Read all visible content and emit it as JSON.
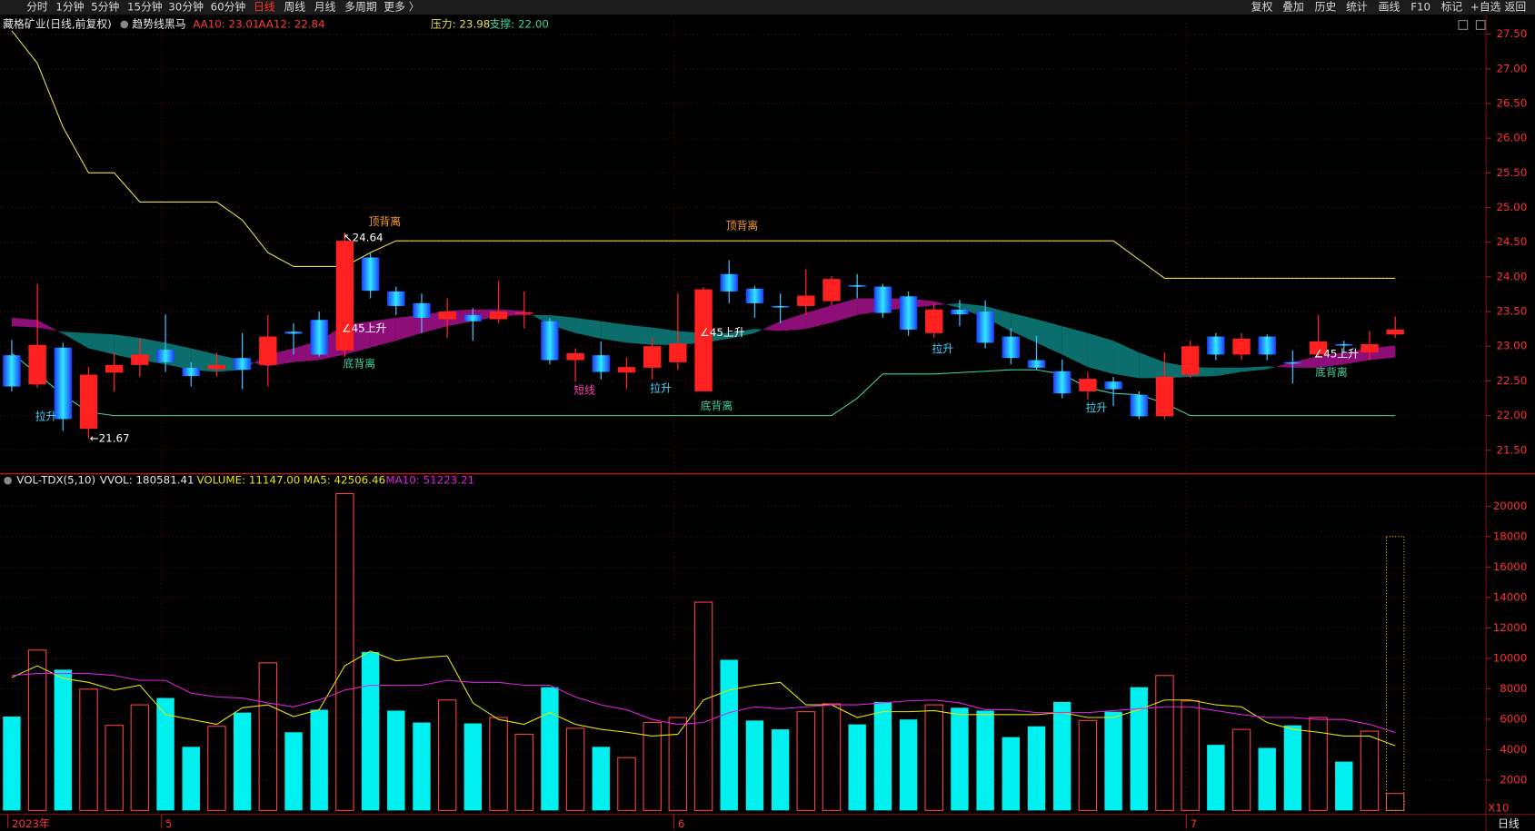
{
  "toolbar": {
    "left": [
      "分时",
      "1分钟",
      "5分钟",
      "15分钟",
      "30分钟",
      "60分钟",
      "日线",
      "周线",
      "月线",
      "多周期",
      "更多 〉"
    ],
    "active": 6,
    "right": [
      "复权",
      "叠加",
      "历史",
      "统计",
      "画线",
      "F10",
      "标记",
      "+自选",
      "返回"
    ]
  },
  "chart_data": [
    {
      "type": "candlestick",
      "title": "藏格矿业(日线,前复权)",
      "subtitle": "趋势线黑马",
      "ylim": [
        21.19,
        27.71
      ],
      "yticks": [
        {
          "value": 21.5,
          "label": "21.50"
        },
        {
          "value": 22,
          "label": "22.00"
        },
        {
          "value": 22.5,
          "label": "22.50"
        },
        {
          "value": 23,
          "label": "23.00"
        },
        {
          "value": 23.5,
          "label": "23.50"
        },
        {
          "value": 24,
          "label": "24.00"
        },
        {
          "value": 24.5,
          "label": "24.50"
        },
        {
          "value": 25,
          "label": "25.00"
        },
        {
          "value": 25.5,
          "label": "25.50"
        },
        {
          "value": 26,
          "label": "26.00"
        },
        {
          "value": 26.5,
          "label": "26.50"
        },
        {
          "value": 27,
          "label": "27.00"
        },
        {
          "value": 27.5,
          "label": "27.50"
        }
      ],
      "grid": true,
      "up_color": "#ff2020",
      "down_color": "#1e6cff",
      "open": [
        22.87,
        22.45,
        22.98,
        21.81,
        22.62,
        22.73,
        22.95,
        22.69,
        22.67,
        22.83,
        22.73,
        23.21,
        23.38,
        22.94,
        24.28,
        23.79,
        23.62,
        23.39,
        23.45,
        23.39,
        23.47,
        23.36,
        22.8,
        22.87,
        22.62,
        22.69,
        22.77,
        22.35,
        24.04,
        23.83,
        23.58,
        23.58,
        23.65,
        23.88,
        23.86,
        23.72,
        23.19,
        23.53,
        23.5,
        23.14,
        22.8,
        22.64,
        22.35,
        22.49,
        22.3,
        21.99,
        22.59,
        23.14,
        22.88,
        23.14,
        22.77,
        22.88,
        23.03,
        22.91,
        23.17
      ],
      "high": [
        23.09,
        23.9,
        23.05,
        22.7,
        22.91,
        23.12,
        23.46,
        22.77,
        22.91,
        23.19,
        23.45,
        23.33,
        23.5,
        24.64,
        24.35,
        23.86,
        23.76,
        23.69,
        23.55,
        23.94,
        23.79,
        23.41,
        22.97,
        23.07,
        22.84,
        23.12,
        23.76,
        23.85,
        24.24,
        23.87,
        23.76,
        24.11,
        24.01,
        24.04,
        23.9,
        23.79,
        23.62,
        23.67,
        23.66,
        23.26,
        23.15,
        22.81,
        22.63,
        22.56,
        22.35,
        22.91,
        23.08,
        23.19,
        23.19,
        23.17,
        22.94,
        23.45,
        23.08,
        23.22,
        23.43
      ],
      "low": [
        22.35,
        22.4,
        21.78,
        21.67,
        22.35,
        22.56,
        22.63,
        22.42,
        22.56,
        22.38,
        22.42,
        22.88,
        22.85,
        22.85,
        23.69,
        23.45,
        23.19,
        23.12,
        23.08,
        23.33,
        23.26,
        22.74,
        22.49,
        22.52,
        22.38,
        22.52,
        22.66,
        22.35,
        23.62,
        23.41,
        23.33,
        23.45,
        23.59,
        23.69,
        23.41,
        23.15,
        23.12,
        23.29,
        22.97,
        22.74,
        22.66,
        22.25,
        22.23,
        22.14,
        21.95,
        21.95,
        22.54,
        22.8,
        22.8,
        22.8,
        22.46,
        22.84,
        22.91,
        22.8,
        23.12
      ],
      "close": [
        22.42,
        23.02,
        21.95,
        22.59,
        22.73,
        22.88,
        22.77,
        22.57,
        22.73,
        22.66,
        23.14,
        23.18,
        22.88,
        24.52,
        23.8,
        23.58,
        23.41,
        23.5,
        23.36,
        23.5,
        23.49,
        22.8,
        22.9,
        22.63,
        22.7,
        23.0,
        23.04,
        23.82,
        23.79,
        23.62,
        23.56,
        23.73,
        23.97,
        23.87,
        23.48,
        23.24,
        23.53,
        23.46,
        23.05,
        22.83,
        22.69,
        22.32,
        22.53,
        22.38,
        21.99,
        22.56,
        23.0,
        22.88,
        23.11,
        22.88,
        22.76,
        23.07,
        23.02,
        23.03,
        23.24
      ],
      "lines": {
        "aa10": {
          "label": "AA10: 23.01",
          "color": "#ff3b3b",
          "values": [
            23.41,
            23.38,
            23.18,
            22.97,
            22.88,
            22.8,
            22.74,
            22.66,
            22.63,
            22.66,
            22.88,
            22.97,
            23.08,
            23.31,
            23.36,
            23.41,
            23.45,
            23.51,
            23.53,
            23.53,
            23.51,
            23.31,
            23.19,
            23.11,
            23.05,
            23.02,
            23.02,
            23.05,
            23.11,
            23.19,
            23.36,
            23.48,
            23.59,
            23.69,
            23.69,
            23.69,
            23.65,
            23.55,
            23.41,
            23.22,
            23.05,
            22.88,
            22.7,
            22.6,
            22.54,
            22.54,
            22.56,
            22.57,
            22.63,
            22.67,
            22.77,
            22.86,
            22.91,
            22.97,
            23.01
          ]
        },
        "aa12": {
          "label": "AA12: 22.84",
          "color": "#ff3b3b",
          "values": [
            23.29,
            23.27,
            23.21,
            23.19,
            23.17,
            23.12,
            23.05,
            22.97,
            22.88,
            22.8,
            22.71,
            22.77,
            22.8,
            22.88,
            22.98,
            23.08,
            23.19,
            23.29,
            23.36,
            23.43,
            23.45,
            23.45,
            23.41,
            23.36,
            23.31,
            23.27,
            23.22,
            23.19,
            23.19,
            23.25,
            23.22,
            23.25,
            23.34,
            23.45,
            23.51,
            23.55,
            23.59,
            23.62,
            23.58,
            23.48,
            23.39,
            23.29,
            23.19,
            23.08,
            22.91,
            22.77,
            22.7,
            22.69,
            22.69,
            22.71,
            22.69,
            22.69,
            22.74,
            22.8,
            22.84
          ]
        },
        "pressure": {
          "label": "压力: 23.98",
          "color": "#e6df4a",
          "values": [
            27.55,
            27.08,
            26.16,
            25.5,
            25.5,
            25.08,
            25.08,
            25.08,
            25.08,
            24.82,
            24.35,
            24.15,
            24.15,
            24.15,
            24.35,
            24.52,
            24.52,
            24.52,
            24.52,
            24.52,
            24.52,
            24.52,
            24.52,
            24.52,
            24.52,
            24.52,
            24.52,
            24.52,
            24.52,
            24.52,
            24.52,
            24.52,
            24.52,
            24.52,
            24.52,
            24.52,
            24.52,
            24.52,
            24.52,
            24.52,
            24.52,
            24.52,
            24.52,
            24.52,
            24.25,
            23.98,
            23.98,
            23.98,
            23.98,
            23.98,
            23.98,
            23.98,
            23.98,
            23.98,
            23.98
          ]
        },
        "support": {
          "label": "支撑: 22.00",
          "color": "#3fd2a0",
          "values": [
            22.9,
            22.6,
            22.3,
            22.05,
            22.0,
            22.0,
            22.0,
            22.0,
            22.0,
            22.0,
            22.0,
            22.0,
            22.0,
            22.0,
            22.0,
            22.0,
            22.0,
            22.0,
            22.0,
            22.0,
            22.0,
            22.0,
            22.0,
            22.0,
            22.0,
            22.0,
            22.0,
            22.0,
            22.0,
            22.0,
            22.0,
            22.0,
            22.0,
            22.25,
            22.6,
            22.6,
            22.6,
            22.62,
            22.64,
            22.66,
            22.66,
            22.6,
            22.4,
            22.32,
            22.3,
            22.18,
            22.0,
            22.0,
            22.0,
            22.0,
            22.0,
            22.0,
            22.0,
            22.0,
            22.0
          ]
        }
      },
      "band_colors": {
        "up": "#8e0e78",
        "down": "#0c6e6c"
      },
      "annotations": [
        {
          "text": "顶背离",
          "color": "#ff9a2e"
        },
        {
          "text": "顶背离",
          "color": "#ff9a2e"
        },
        {
          "text": "↖24.64",
          "color": "#ffffff"
        },
        {
          "text": "←21.67",
          "color": "#ffffff"
        },
        {
          "text": "∠45上升",
          "color": "#ffffff"
        },
        {
          "text": "∠45上升",
          "color": "#ffffff"
        },
        {
          "text": "∠45上升",
          "color": "#ffffff"
        },
        {
          "text": "底背离",
          "color": "#3fd2a0"
        },
        {
          "text": "底背离",
          "color": "#3fd2a0"
        },
        {
          "text": "底背离",
          "color": "#3fd2a0"
        },
        {
          "text": "拉升",
          "color": "#3fd6ff"
        },
        {
          "text": "拉升",
          "color": "#3fd6ff"
        },
        {
          "text": "拉升",
          "color": "#3fd6ff"
        },
        {
          "text": "拉升",
          "color": "#3fd6ff"
        },
        {
          "text": "短线",
          "color": "#ff3cb4"
        }
      ]
    },
    {
      "type": "bar",
      "title": "VOL-TDX(5,10)",
      "header": [
        {
          "text": "VVOL: 180581.41",
          "color": "#e8e8e8"
        },
        {
          "text": "VOLUME: 11147.00",
          "color": "#e6e600"
        },
        {
          "text": "MA5: 42506.46",
          "color": "#e6e600"
        },
        {
          "text": "MA10: 51223.21",
          "color": "#e020e0"
        }
      ],
      "ylim": [
        0,
        22000
      ],
      "yticks": [
        2000,
        4000,
        6000,
        8000,
        10000,
        12000,
        14000,
        16000,
        18000,
        20000
      ],
      "xticks": [
        {
          "value": 0,
          "label": "2023年"
        },
        {
          "value": 6,
          "label": "5"
        },
        {
          "value": 26,
          "label": "6"
        },
        {
          "value": 46,
          "label": "7"
        }
      ],
      "unit_label": "X10",
      "period_label": "日线",
      "up_color": "#ff4040",
      "down_color": "#00f0f0",
      "values": [
        6170,
        10540,
        9250,
        7970,
        5590,
        6940,
        7390,
        4180,
        5530,
        6430,
        9700,
        5140,
        6620,
        20820,
        10410,
        6560,
        5780,
        7260,
        5720,
        6110,
        5010,
        8100,
        5400,
        4180,
        3470,
        5780,
        6110,
        13690,
        9900,
        5910,
        5330,
        6490,
        7010,
        5660,
        7130,
        5980,
        6940,
        6750,
        6560,
        4820,
        5530,
        7130,
        5910,
        6490,
        8100,
        8870,
        7200,
        4310,
        5330,
        4110,
        5590,
        6110,
        3210,
        5210,
        1114.7
      ],
      "estimate": 18000,
      "estimate_color": "#c8c800",
      "series": [
        {
          "name": "MA5",
          "color": "#e6e600",
          "values": [
            8740,
            9510,
            8680,
            8420,
            7910,
            8230,
            6300,
            5980,
            5660,
            6750,
            6940,
            6170,
            6620,
            9510,
            10480,
            9830,
            10030,
            10160,
            7070,
            5980,
            5660,
            6430,
            5660,
            5330,
            5140,
            4890,
            5010,
            7260,
            7910,
            8230,
            8420,
            6940,
            6940,
            6110,
            6490,
            6490,
            6560,
            6300,
            6300,
            6300,
            6300,
            6430,
            6110,
            6110,
            6620,
            7260,
            7260,
            6940,
            6810,
            5780,
            5330,
            5140,
            4890,
            4890,
            4250
          ]
        },
        {
          "name": "MA10",
          "color": "#e020e0",
          "values": [
            8870,
            9000,
            9000,
            9000,
            8870,
            8550,
            8550,
            7710,
            7460,
            7390,
            7070,
            6810,
            7260,
            7910,
            8230,
            8230,
            8230,
            8550,
            8420,
            8420,
            8230,
            8230,
            7460,
            6940,
            6620,
            5980,
            5660,
            5780,
            6430,
            6810,
            6680,
            6810,
            6940,
            6940,
            7070,
            7200,
            7260,
            7070,
            6620,
            6620,
            6430,
            6430,
            6430,
            6560,
            6680,
            6810,
            6810,
            6560,
            6300,
            6110,
            6110,
            5980,
            5980,
            5660,
            5122
          ]
        }
      ]
    }
  ]
}
